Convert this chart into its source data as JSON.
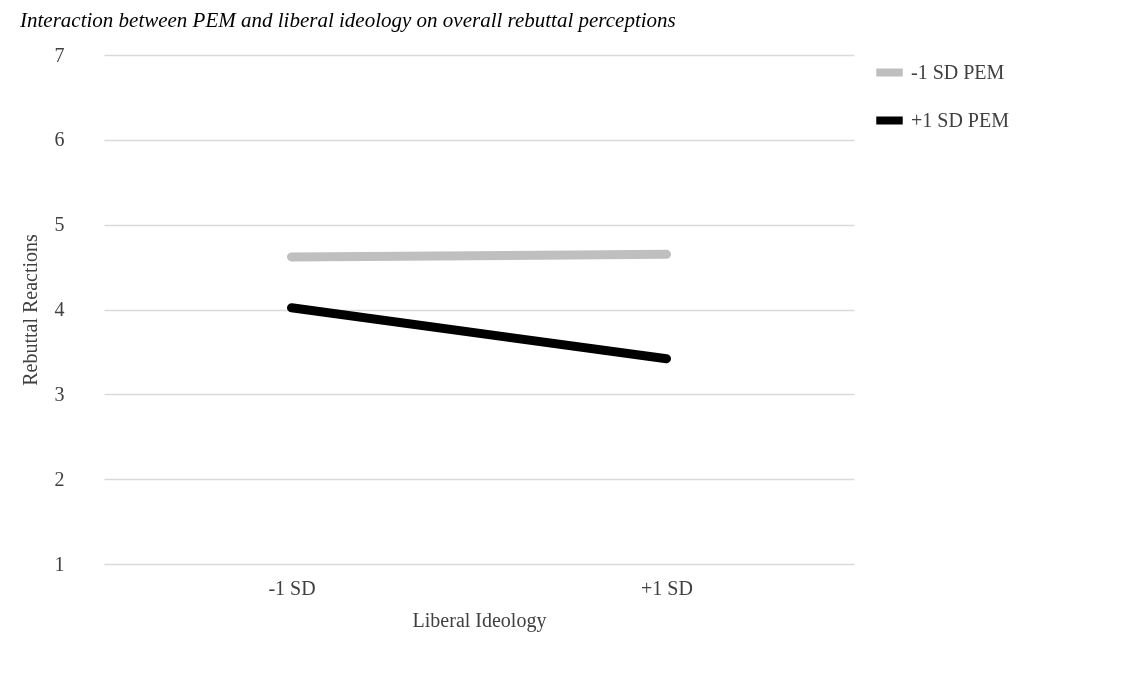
{
  "chart_data": {
    "type": "line",
    "title": "Interaction between PEM and liberal ideology on overall rebuttal perceptions",
    "xlabel": "Liberal Ideology",
    "ylabel": "Rebuttal Reactions",
    "categories": [
      "-1 SD",
      "+1 SD"
    ],
    "series": [
      {
        "name": "-1 SD PEM",
        "color": "#bfbfbf",
        "values": [
          4.62,
          4.65
        ]
      },
      {
        "name": "+1 SD PEM",
        "color": "#000000",
        "values": [
          4.02,
          3.42
        ]
      }
    ],
    "ylim": [
      1,
      7
    ],
    "yticks": [
      1,
      2,
      3,
      4,
      5,
      6,
      7
    ],
    "grid": "y",
    "legend": "right",
    "marker": "none",
    "line_style": "solid"
  }
}
